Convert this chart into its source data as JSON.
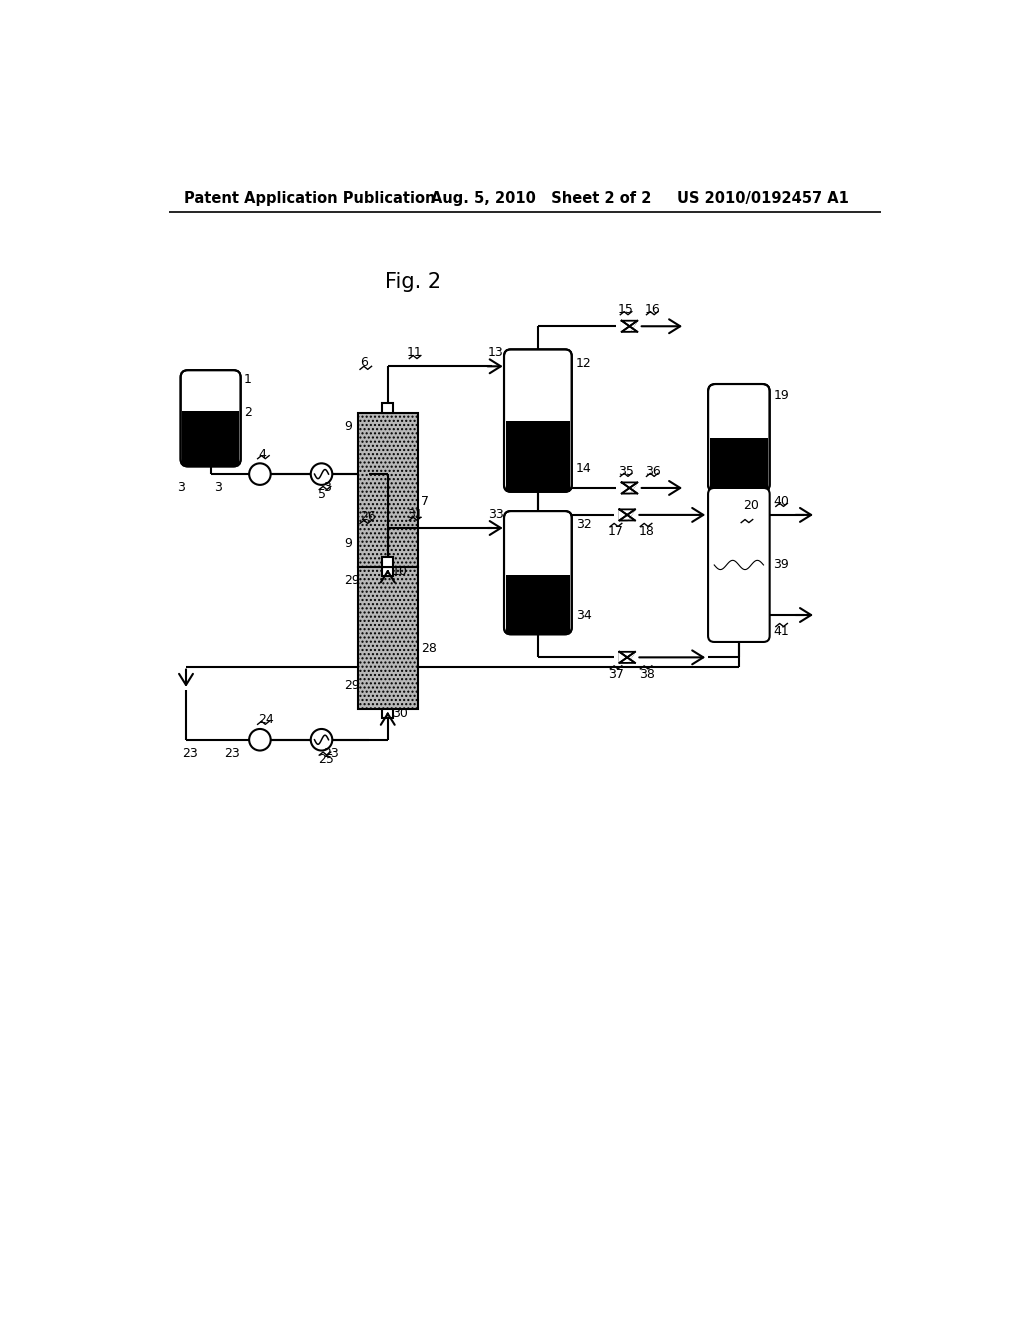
{
  "header_left": "Patent Application Publication",
  "header_middle": "Aug. 5, 2010   Sheet 2 of 2",
  "header_right": "US 2010/0192457 A1",
  "fig_title": "Fig. 2",
  "bg_color": "#ffffff"
}
